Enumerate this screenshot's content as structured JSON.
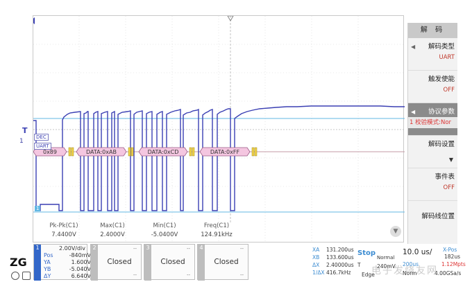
{
  "menu": {
    "title": "解 码",
    "items": [
      {
        "label": "解码类型",
        "value": "UART"
      },
      {
        "label": "触发使能",
        "value": "OFF"
      },
      {
        "label": "协议参数",
        "value": "1 校验模式:Nor"
      },
      {
        "label": "解码设置",
        "value": ""
      },
      {
        "label": "事件表",
        "value": "OFF"
      },
      {
        "label": "解码线位置",
        "value": ""
      }
    ]
  },
  "display": {
    "trigger_marker": "T",
    "channel_marker": "1",
    "decode_tag_dec": "DEC",
    "decode_tag_uart": "UART",
    "ch_ground_marker": "1",
    "packets": [
      "0x89",
      "DATA:0xAB",
      "DATA:0xCD",
      "DATA:0xFF"
    ]
  },
  "measurements": [
    {
      "name": "Pk-Pk(C1)",
      "value": "7.4400V"
    },
    {
      "name": "Max(C1)",
      "value": "2.4000V"
    },
    {
      "name": "Min(C1)",
      "value": "-5.0400V"
    },
    {
      "name": "Freq(C1)",
      "value": "124.91kHz"
    }
  ],
  "channels": {
    "ch1": {
      "number": "1",
      "scale": "2.00V/div",
      "pos_label": "Pos",
      "pos": "-840mV",
      "rows": [
        {
          "k": "YA",
          "v": "1.600V"
        },
        {
          "k": "YB",
          "v": "-5.040V"
        },
        {
          "k": "ΔY",
          "v": "6.640V"
        }
      ]
    },
    "ch2": {
      "number": "2",
      "status": "Closed",
      "dash": "--"
    },
    "ch3": {
      "number": "3",
      "status": "Closed",
      "dash": "--"
    },
    "ch4": {
      "number": "4",
      "status": "Closed",
      "dash": "--"
    }
  },
  "cursors": [
    {
      "k": "XA",
      "v": "131.200us"
    },
    {
      "k": "XB",
      "v": "133.600us"
    },
    {
      "k": "ΔX",
      "v": "2.40000us"
    },
    {
      "k": "1/ΔX",
      "v": "416.7kHz"
    }
  ],
  "trigger": {
    "state": "Stop",
    "mode": "Normal",
    "source": "T",
    "level": "240mV",
    "type": "Edge"
  },
  "timebase": {
    "scale": "10.0 us/",
    "xpos_label": "X-Pos",
    "xpos": "182us",
    "rate_label": "200us",
    "points": "1.12Mpts",
    "norm": "Norm",
    "sample_rate": "4.00GSa/s"
  },
  "watermark": "电子发烧友网"
}
